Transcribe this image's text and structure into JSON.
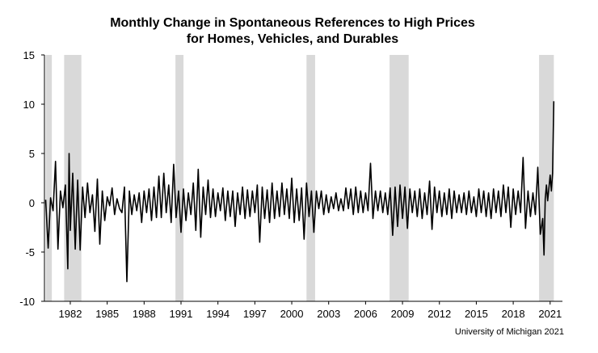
{
  "chart_data": {
    "type": "line",
    "title": [
      "Monthly Change in Spontaneous References to High Prices",
      "for Homes, Vehicles, and Durables"
    ],
    "xlabel": "",
    "ylabel": "",
    "xlim": [
      1979.9,
      2022.0
    ],
    "ylim": [
      -10,
      15
    ],
    "yticks": [
      -10,
      -5,
      0,
      5,
      10,
      15
    ],
    "xticks": [
      1982,
      1985,
      1988,
      1991,
      1994,
      1997,
      2000,
      2003,
      2006,
      2009,
      2012,
      2015,
      2018,
      2021
    ],
    "recessions": [
      [
        1980.0,
        1980.5
      ],
      [
        1981.5,
        1982.9
      ],
      [
        1990.55,
        1991.2
      ],
      [
        2001.2,
        2001.9
      ],
      [
        2007.95,
        2009.5
      ],
      [
        2020.1,
        2021.3
      ]
    ],
    "series": [
      {
        "name": "Monthly change",
        "color": "#000000",
        "points": [
          [
            1980.0,
            0.3
          ],
          [
            1980.2,
            -4.6
          ],
          [
            1980.4,
            0.5
          ],
          [
            1980.6,
            -0.8
          ],
          [
            1980.8,
            4.2
          ],
          [
            1981.0,
            -4.7
          ],
          [
            1981.2,
            1.2
          ],
          [
            1981.4,
            -0.5
          ],
          [
            1981.6,
            1.8
          ],
          [
            1981.8,
            -6.7
          ],
          [
            1981.9,
            5.0
          ],
          [
            1982.0,
            -2.8
          ],
          [
            1982.2,
            3.0
          ],
          [
            1982.4,
            -4.7
          ],
          [
            1982.6,
            2.3
          ],
          [
            1982.8,
            -4.8
          ],
          [
            1983.0,
            1.6
          ],
          [
            1983.2,
            -1.5
          ],
          [
            1983.4,
            2.0
          ],
          [
            1983.6,
            -1.0
          ],
          [
            1983.8,
            0.8
          ],
          [
            1984.0,
            -2.9
          ],
          [
            1984.2,
            2.4
          ],
          [
            1984.4,
            -4.2
          ],
          [
            1984.6,
            1.2
          ],
          [
            1984.8,
            -1.8
          ],
          [
            1985.0,
            0.6
          ],
          [
            1985.2,
            -0.3
          ],
          [
            1985.4,
            1.5
          ],
          [
            1985.6,
            -1.2
          ],
          [
            1985.8,
            0.4
          ],
          [
            1986.0,
            -0.6
          ],
          [
            1986.2,
            -1.0
          ],
          [
            1986.4,
            1.6
          ],
          [
            1986.6,
            -8.0
          ],
          [
            1986.8,
            1.2
          ],
          [
            1987.0,
            -1.2
          ],
          [
            1987.2,
            0.8
          ],
          [
            1987.4,
            -0.8
          ],
          [
            1987.6,
            1.0
          ],
          [
            1987.8,
            -2.0
          ],
          [
            1988.0,
            1.2
          ],
          [
            1988.2,
            -1.0
          ],
          [
            1988.4,
            1.4
          ],
          [
            1988.6,
            -1.8
          ],
          [
            1988.8,
            1.6
          ],
          [
            1989.0,
            -1.5
          ],
          [
            1989.2,
            2.7
          ],
          [
            1989.4,
            -1.5
          ],
          [
            1989.6,
            3.0
          ],
          [
            1989.8,
            -1.0
          ],
          [
            1990.0,
            1.8
          ],
          [
            1990.2,
            -2.0
          ],
          [
            1990.4,
            3.9
          ],
          [
            1990.6,
            -1.5
          ],
          [
            1990.8,
            1.2
          ],
          [
            1991.0,
            -3.0
          ],
          [
            1991.2,
            1.4
          ],
          [
            1991.4,
            -1.8
          ],
          [
            1991.6,
            1.0
          ],
          [
            1991.8,
            -1.2
          ],
          [
            1992.0,
            2.0
          ],
          [
            1992.2,
            -2.8
          ],
          [
            1992.4,
            3.4
          ],
          [
            1992.6,
            -3.5
          ],
          [
            1992.8,
            1.6
          ],
          [
            1993.0,
            -1.2
          ],
          [
            1993.2,
            2.3
          ],
          [
            1993.4,
            -1.5
          ],
          [
            1993.6,
            1.4
          ],
          [
            1993.8,
            -1.4
          ],
          [
            1994.0,
            1.0
          ],
          [
            1994.2,
            -0.8
          ],
          [
            1994.4,
            1.5
          ],
          [
            1994.6,
            -1.8
          ],
          [
            1994.8,
            1.2
          ],
          [
            1995.0,
            -1.4
          ],
          [
            1995.2,
            1.2
          ],
          [
            1995.4,
            -2.4
          ],
          [
            1995.6,
            1.0
          ],
          [
            1995.8,
            -1.2
          ],
          [
            1996.0,
            1.6
          ],
          [
            1996.2,
            -1.6
          ],
          [
            1996.4,
            1.3
          ],
          [
            1996.6,
            -1.4
          ],
          [
            1996.8,
            1.2
          ],
          [
            1997.0,
            -1.0
          ],
          [
            1997.2,
            1.8
          ],
          [
            1997.4,
            -4.0
          ],
          [
            1997.6,
            1.6
          ],
          [
            1997.8,
            -1.6
          ],
          [
            1998.0,
            1.3
          ],
          [
            1998.2,
            -2.0
          ],
          [
            1998.4,
            2.0
          ],
          [
            1998.6,
            -1.6
          ],
          [
            1998.8,
            1.2
          ],
          [
            1999.0,
            -1.4
          ],
          [
            1999.2,
            2.0
          ],
          [
            1999.4,
            -1.2
          ],
          [
            1999.6,
            1.4
          ],
          [
            1999.8,
            -1.6
          ],
          [
            2000.0,
            2.5
          ],
          [
            2000.2,
            -2.0
          ],
          [
            2000.4,
            1.4
          ],
          [
            2000.6,
            -1.8
          ],
          [
            2000.8,
            1.5
          ],
          [
            2001.0,
            -3.7
          ],
          [
            2001.2,
            2.0
          ],
          [
            2001.4,
            -1.4
          ],
          [
            2001.6,
            1.2
          ],
          [
            2001.8,
            -3.0
          ],
          [
            2002.0,
            1.2
          ],
          [
            2002.2,
            -0.6
          ],
          [
            2002.4,
            1.2
          ],
          [
            2002.6,
            -1.2
          ],
          [
            2002.8,
            0.8
          ],
          [
            2003.0,
            -1.0
          ],
          [
            2003.2,
            0.6
          ],
          [
            2003.4,
            -0.6
          ],
          [
            2003.6,
            1.0
          ],
          [
            2003.8,
            -0.8
          ],
          [
            2004.0,
            0.4
          ],
          [
            2004.2,
            -0.8
          ],
          [
            2004.4,
            1.5
          ],
          [
            2004.6,
            -0.6
          ],
          [
            2004.8,
            1.4
          ],
          [
            2005.0,
            -1.2
          ],
          [
            2005.2,
            1.6
          ],
          [
            2005.4,
            -1.0
          ],
          [
            2005.6,
            1.2
          ],
          [
            2005.8,
            -1.0
          ],
          [
            2006.0,
            1.0
          ],
          [
            2006.2,
            -0.8
          ],
          [
            2006.4,
            4.0
          ],
          [
            2006.6,
            -1.6
          ],
          [
            2006.8,
            1.2
          ],
          [
            2007.0,
            -0.8
          ],
          [
            2007.2,
            1.2
          ],
          [
            2007.4,
            -1.0
          ],
          [
            2007.6,
            1.0
          ],
          [
            2007.8,
            -1.2
          ],
          [
            2008.0,
            1.5
          ],
          [
            2008.2,
            -3.3
          ],
          [
            2008.4,
            1.6
          ],
          [
            2008.6,
            -2.4
          ],
          [
            2008.8,
            1.8
          ],
          [
            2009.0,
            -1.6
          ],
          [
            2009.2,
            1.6
          ],
          [
            2009.4,
            -2.6
          ],
          [
            2009.6,
            1.4
          ],
          [
            2009.8,
            -1.0
          ],
          [
            2010.0,
            1.2
          ],
          [
            2010.2,
            -1.4
          ],
          [
            2010.4,
            1.4
          ],
          [
            2010.6,
            -1.6
          ],
          [
            2010.8,
            1.0
          ],
          [
            2011.0,
            -1.2
          ],
          [
            2011.2,
            2.2
          ],
          [
            2011.4,
            -2.7
          ],
          [
            2011.6,
            1.6
          ],
          [
            2011.8,
            -1.0
          ],
          [
            2012.0,
            1.2
          ],
          [
            2012.2,
            -1.4
          ],
          [
            2012.4,
            1.0
          ],
          [
            2012.6,
            -1.2
          ],
          [
            2012.8,
            1.4
          ],
          [
            2013.0,
            -1.6
          ],
          [
            2013.2,
            1.2
          ],
          [
            2013.4,
            -1.0
          ],
          [
            2013.6,
            0.8
          ],
          [
            2013.8,
            -1.0
          ],
          [
            2014.0,
            1.0
          ],
          [
            2014.2,
            -1.2
          ],
          [
            2014.4,
            1.2
          ],
          [
            2014.6,
            -1.0
          ],
          [
            2014.8,
            0.6
          ],
          [
            2015.0,
            -1.4
          ],
          [
            2015.2,
            1.4
          ],
          [
            2015.4,
            -1.0
          ],
          [
            2015.6,
            1.2
          ],
          [
            2015.8,
            -1.4
          ],
          [
            2016.0,
            1.0
          ],
          [
            2016.2,
            -1.6
          ],
          [
            2016.4,
            1.4
          ],
          [
            2016.6,
            -1.0
          ],
          [
            2016.8,
            1.2
          ],
          [
            2017.0,
            -1.4
          ],
          [
            2017.2,
            1.8
          ],
          [
            2017.4,
            -1.0
          ],
          [
            2017.6,
            1.6
          ],
          [
            2017.8,
            -2.5
          ],
          [
            2018.0,
            1.4
          ],
          [
            2018.2,
            -1.2
          ],
          [
            2018.4,
            1.2
          ],
          [
            2018.6,
            -1.0
          ],
          [
            2018.8,
            4.6
          ],
          [
            2019.0,
            -2.6
          ],
          [
            2019.2,
            1.2
          ],
          [
            2019.4,
            -1.4
          ],
          [
            2019.6,
            1.0
          ],
          [
            2019.8,
            -1.2
          ],
          [
            2020.0,
            3.6
          ],
          [
            2020.2,
            -3.2
          ],
          [
            2020.4,
            -1.6
          ],
          [
            2020.5,
            -5.3
          ],
          [
            2020.6,
            0.4
          ],
          [
            2020.7,
            1.8
          ],
          [
            2020.8,
            0.2
          ],
          [
            2021.0,
            2.8
          ],
          [
            2021.1,
            1.2
          ],
          [
            2021.2,
            3.0
          ],
          [
            2021.3,
            10.3
          ]
        ]
      }
    ],
    "source_note": "University of Michigan 2021"
  }
}
